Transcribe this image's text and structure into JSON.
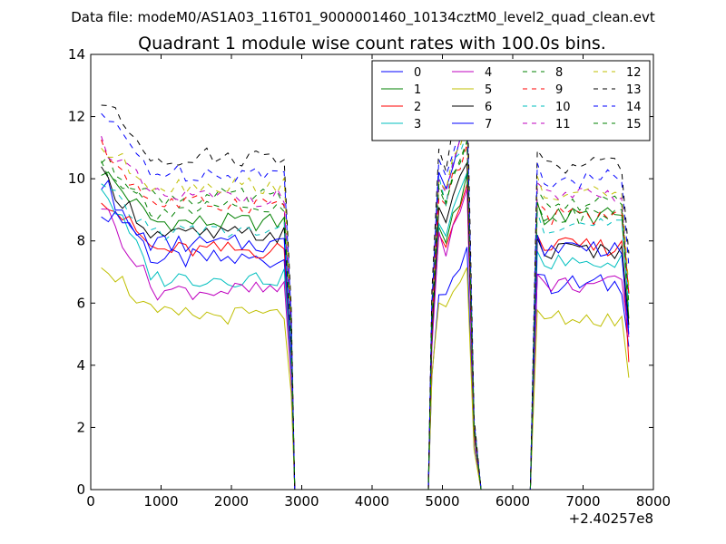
{
  "chart_data": {
    "type": "line",
    "suptitle": "Data file: modeM0/AS1A03_116T01_9000001460_10134cztM0_level2_quad_clean.evt",
    "title": "Quadrant 1 module wise count rates with 100.0s bins.",
    "xlabel": "",
    "ylabel": "",
    "x_offset_label": "+2.40257e8",
    "xlim": [
      0,
      8000
    ],
    "ylim": [
      0,
      14
    ],
    "x_ticks": [
      0,
      1000,
      2000,
      3000,
      4000,
      5000,
      6000,
      7000,
      8000
    ],
    "y_ticks": [
      0,
      2,
      4,
      6,
      8,
      10,
      12,
      14
    ],
    "legend_position": "top-right",
    "legend_columns": 4,
    "x_segments": {
      "seg1": {
        "start": 150,
        "end": 2750
      },
      "drop1": [
        2850,
        2900
      ],
      "zero1": [
        3000,
        4800
      ],
      "seg2": [
        4850,
        4950,
        5050,
        5150,
        5250,
        5350
      ],
      "drop2": [
        5450,
        5550
      ],
      "zero2": [
        5650,
        6250
      ],
      "seg3": {
        "start": 6350,
        "end": 7550
      },
      "tail3": 7650
    },
    "series": [
      {
        "name": "0",
        "color": "#0000ff",
        "dash": "solid",
        "level1": 7.4,
        "start1": 10.0,
        "level2": 6.8,
        "level3": 6.6,
        "tail": 4.6,
        "variation": 0.35
      },
      {
        "name": "1",
        "color": "#008000",
        "dash": "solid",
        "level1": 8.6,
        "start1": 10.3,
        "level2": 8.9,
        "level3": 8.8,
        "tail": 5.5,
        "variation": 0.3
      },
      {
        "name": "2",
        "color": "#ff0000",
        "dash": "solid",
        "level1": 7.7,
        "start1": 9.5,
        "level2": 8.7,
        "level3": 7.8,
        "tail": 4.1,
        "variation": 0.3
      },
      {
        "name": "3",
        "color": "#00bfbf",
        "dash": "solid",
        "level1": 6.8,
        "start1": 9.8,
        "level2": 9.0,
        "level3": 7.3,
        "tail": 5.2,
        "variation": 0.3
      },
      {
        "name": "4",
        "color": "#bf00bf",
        "dash": "solid",
        "level1": 6.4,
        "start1": 9.2,
        "level2": 8.6,
        "level3": 6.6,
        "tail": 4.9,
        "variation": 0.3
      },
      {
        "name": "5",
        "color": "#bfbf00",
        "dash": "solid",
        "level1": 5.6,
        "start1": 7.4,
        "level2": 6.4,
        "level3": 5.5,
        "tail": 3.6,
        "variation": 0.3
      },
      {
        "name": "6",
        "color": "#000000",
        "dash": "solid",
        "level1": 8.2,
        "start1": 10.1,
        "level2": 9.4,
        "level3": 7.7,
        "tail": 5.3,
        "variation": 0.3
      },
      {
        "name": "7",
        "color": "#0000ff",
        "dash": "solid",
        "level1": 7.9,
        "start1": 9.0,
        "level2": 10.6,
        "level3": 7.8,
        "tail": 5.0,
        "variation": 0.3
      },
      {
        "name": "8",
        "color": "#008000",
        "dash": "dashed",
        "level1": 9.4,
        "start1": 10.6,
        "level2": 10.0,
        "level3": 9.2,
        "tail": 6.3,
        "variation": 0.3
      },
      {
        "name": "9",
        "color": "#ff0000",
        "dash": "dashed",
        "level1": 9.2,
        "start1": 11.0,
        "level2": 10.0,
        "level3": 8.8,
        "tail": 6.3,
        "variation": 0.3
      },
      {
        "name": "10",
        "color": "#00bfbf",
        "dash": "dashed",
        "level1": 8.3,
        "start1": 9.7,
        "level2": 10.4,
        "level3": 8.5,
        "tail": 5.8,
        "variation": 0.3
      },
      {
        "name": "11",
        "color": "#bf00bf",
        "dash": "dashed",
        "level1": 9.4,
        "start1": 11.2,
        "level2": 10.6,
        "level3": 9.4,
        "tail": 6.3,
        "variation": 0.3
      },
      {
        "name": "12",
        "color": "#bfbf00",
        "dash": "dashed",
        "level1": 9.8,
        "start1": 11.0,
        "level2": 10.6,
        "level3": 9.6,
        "tail": 6.5,
        "variation": 0.3
      },
      {
        "name": "13",
        "color": "#000000",
        "dash": "dashed",
        "level1": 10.7,
        "start1": 12.5,
        "level2": 11.6,
        "level3": 10.4,
        "tail": 7.6,
        "variation": 0.3
      },
      {
        "name": "14",
        "color": "#0000ff",
        "dash": "dashed",
        "level1": 10.2,
        "start1": 12.1,
        "level2": 11.0,
        "level3": 10.0,
        "tail": 7.2,
        "variation": 0.3
      },
      {
        "name": "15",
        "color": "#008000",
        "dash": "dashed",
        "level1": 9.0,
        "start1": 10.5,
        "level2": 10.2,
        "level3": 8.8,
        "tail": 6.0,
        "variation": 0.3
      }
    ]
  }
}
